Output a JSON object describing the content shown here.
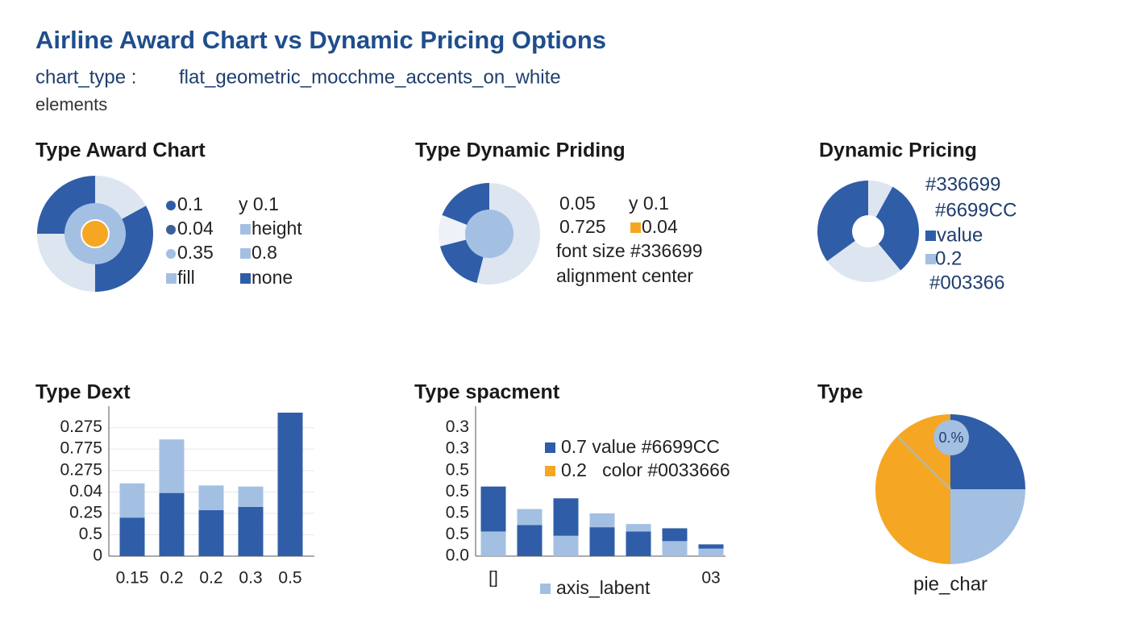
{
  "header": {
    "title": "Airline Award Chart vs Dynamic Pricing Options",
    "chart_type_label": "chart_type :",
    "chart_type_value": "flat_geometric_mocchme_accents_on_white",
    "subtitle": "elements"
  },
  "chart_data": [
    {
      "type": "donut",
      "title": "Type Award Chart",
      "slices": {
        "values": [
          17,
          33,
          25,
          25
        ],
        "colors": [
          "#dde5f1",
          "#2f5da8",
          "#dde5f1",
          "#2f5da8"
        ]
      },
      "center_colors": [
        "#a3c0e3",
        "#f5a623"
      ],
      "legend": [
        {
          "label": "0.1",
          "color": "#2f5da8",
          "marker": "circle"
        },
        {
          "label": "0.04",
          "color": "#3f5f9a",
          "marker": "circle"
        },
        {
          "label": "0.35",
          "color": "#a3c0e3",
          "marker": "circle"
        },
        {
          "label": "fill",
          "color": "#a3c0e3",
          "marker": "square"
        },
        {
          "label": "y 0.1"
        },
        {
          "label": "height",
          "color": "#a3c0e3",
          "marker": "square"
        },
        {
          "label": "0.8",
          "color": "#a3c0e3",
          "marker": "square"
        },
        {
          "label": "none",
          "color": "#2f5da8",
          "marker": "square"
        }
      ]
    },
    {
      "type": "donut",
      "title": "Type Dynamic Priding",
      "slices": {
        "values": [
          54,
          17,
          10,
          19
        ],
        "colors": [
          "#dde5f1",
          "#2f5da8",
          "#eef2f8",
          "#2f5da8"
        ]
      },
      "center_colors": [
        "#a3c0e3"
      ],
      "legend": [
        {
          "label": "0.05"
        },
        {
          "label": "y 0.1"
        },
        {
          "label": "0.725"
        },
        {
          "label": "0.04",
          "color": "#f5a623",
          "marker": "square"
        },
        {
          "label": "font size #336699"
        },
        {
          "label": "alignment center"
        }
      ]
    },
    {
      "type": "donut",
      "title": "Dynamic Pricing",
      "slices": {
        "values": [
          8,
          31,
          26,
          35
        ],
        "colors": [
          "#dde5f1",
          "#2f5da8",
          "#dde5f1",
          "#2f5da8"
        ]
      },
      "center_colors": [
        "#ffffff"
      ],
      "legend": [
        {
          "label": "#336699"
        },
        {
          "label": "#6699CC"
        },
        {
          "label": "value",
          "color": "#2f5da8",
          "marker": "square"
        },
        {
          "label": "0.2",
          "color": "#a3c0e3",
          "marker": "square"
        },
        {
          "label": "#003366"
        }
      ]
    },
    {
      "type": "stacked_bar",
      "title": "Type Dext",
      "categories": [
        "0.15",
        "0.2",
        "0.2",
        "0.3",
        "0.5"
      ],
      "bars": [
        {
          "segments": [
            {
              "value": 1.8,
              "color": "#2f5da8"
            },
            {
              "value": 1.6,
              "color": "#a3c0e3"
            }
          ]
        },
        {
          "segments": [
            {
              "value": 2.95,
              "color": "#2f5da8"
            },
            {
              "value": 2.5,
              "color": "#a3c0e3"
            }
          ]
        },
        {
          "segments": [
            {
              "value": 2.15,
              "color": "#2f5da8"
            },
            {
              "value": 1.15,
              "color": "#a3c0e3"
            }
          ]
        },
        {
          "segments": [
            {
              "value": 2.3,
              "color": "#2f5da8"
            },
            {
              "value": 0.95,
              "color": "#a3c0e3"
            }
          ]
        },
        {
          "segments": [
            {
              "value": 6.7,
              "color": "#2f5da8"
            }
          ]
        }
      ],
      "ylim": [
        0,
        7
      ],
      "yticks": [
        {
          "value": 6,
          "label": "0.275"
        },
        {
          "value": 5,
          "label": "0.775"
        },
        {
          "value": 4,
          "label": "0.275"
        },
        {
          "value": 3,
          "label": "0.04"
        },
        {
          "value": 2,
          "label": "0.25"
        },
        {
          "value": 1,
          "label": "0.5"
        },
        0
      ],
      "grid": true
    },
    {
      "type": "stacked_bar",
      "title": "Type spacment",
      "categories": [
        "[]",
        null,
        null,
        null,
        null,
        null,
        "03"
      ],
      "bars": [
        {
          "segments": [
            {
              "value": 1.15,
              "color": "#a3c0e3"
            },
            {
              "value": 2.1,
              "color": "#2f5da8"
            }
          ]
        },
        {
          "segments": [
            {
              "value": 1.45,
              "color": "#2f5da8"
            },
            {
              "value": 0.75,
              "color": "#a3c0e3"
            }
          ]
        },
        {
          "segments": [
            {
              "value": 0.95,
              "color": "#a3c0e3"
            },
            {
              "value": 1.75,
              "color": "#2f5da8"
            }
          ]
        },
        {
          "segments": [
            {
              "value": 1.35,
              "color": "#2f5da8"
            },
            {
              "value": 0.65,
              "color": "#a3c0e3"
            }
          ]
        },
        {
          "segments": [
            {
              "value": 1.15,
              "color": "#2f5da8"
            },
            {
              "value": 0.35,
              "color": "#a3c0e3"
            }
          ]
        },
        {
          "segments": [
            {
              "value": 0.7,
              "color": "#a3c0e3"
            },
            {
              "value": 0.6,
              "color": "#2f5da8"
            }
          ]
        },
        {
          "segments": [
            {
              "value": 0.35,
              "color": "#a3c0e3"
            },
            {
              "value": 0.2,
              "color": "#2f5da8"
            }
          ]
        }
      ],
      "ylim": [
        0,
        7
      ],
      "yticks": [
        {
          "value": 6,
          "label": "0.3"
        },
        {
          "value": 5,
          "label": "0.3"
        },
        {
          "value": 4,
          "label": "0.5"
        },
        {
          "value": 3,
          "label": "0.5"
        },
        {
          "value": 2,
          "label": "0.5"
        },
        {
          "value": 1,
          "label": "0.5"
        },
        {
          "value": 0,
          "label": "0.0"
        }
      ],
      "grid": false,
      "legend": [
        {
          "label": "0.7 value #6699CC",
          "color": "#2f5da8",
          "marker": "square"
        },
        {
          "label": "0.2   color #0033666",
          "color": "#f5a623",
          "marker": "square"
        },
        {
          "label": "axis_labent",
          "color": "#a3c0e3",
          "marker": "square"
        }
      ]
    },
    {
      "type": "pie",
      "title": "Type",
      "slices": {
        "values": [
          25,
          25,
          50
        ],
        "colors": [
          "#2f5da8",
          "#a3c0e3",
          "#f5a623"
        ]
      },
      "label": "0.%",
      "caption": "pie_char"
    }
  ]
}
